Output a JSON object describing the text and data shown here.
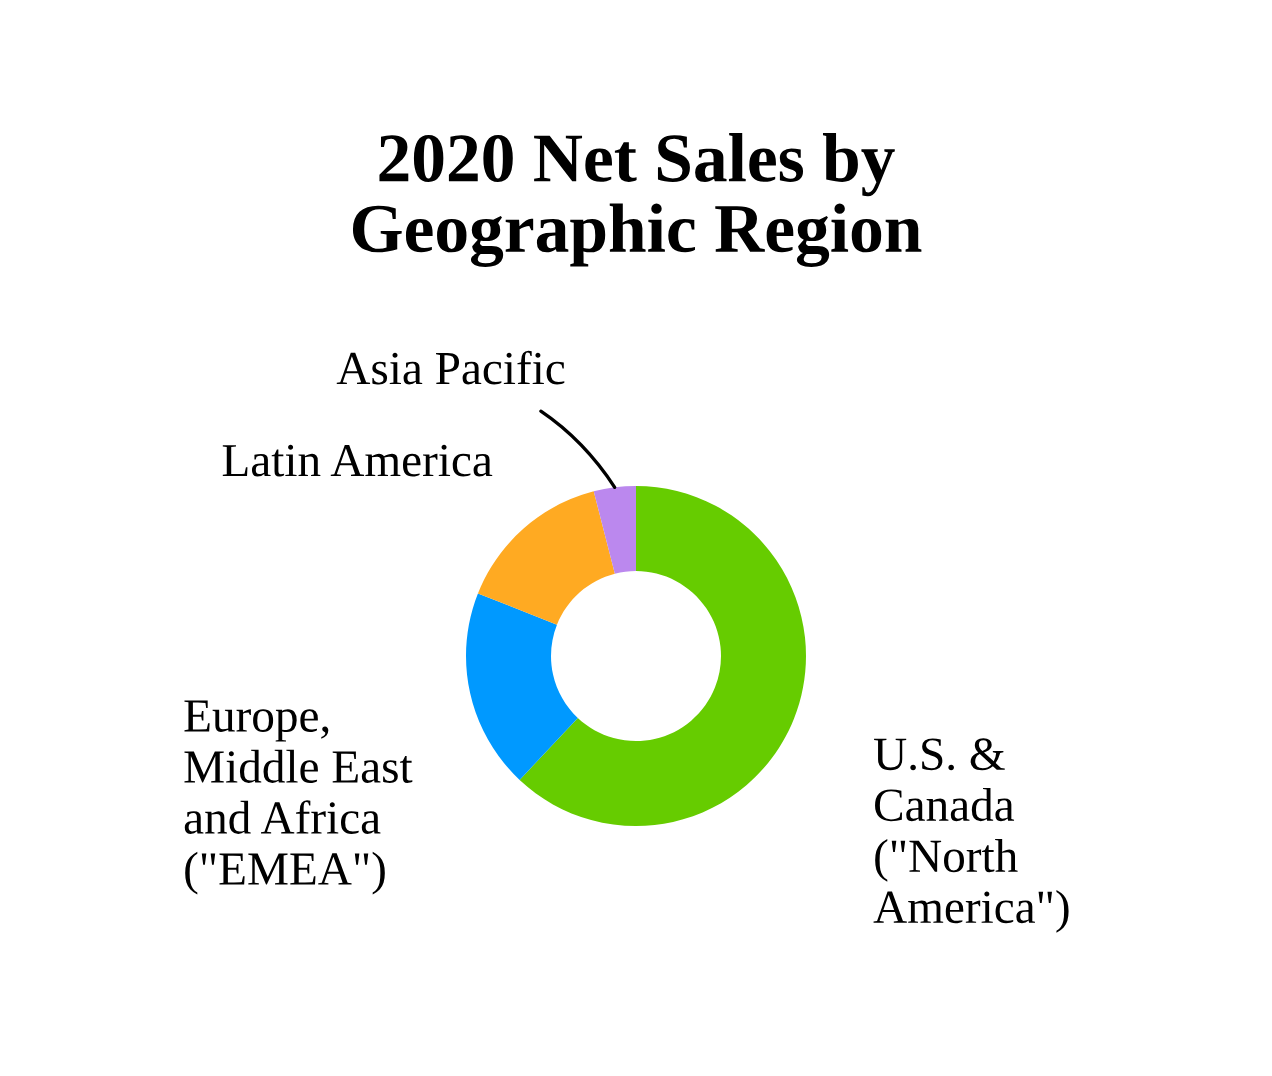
{
  "chart_data": {
    "type": "donut",
    "title": "2020 Net Sales by\nGeographic Region",
    "categories": [
      "U.S. &\nCanada\n(\"North\nAmerica\")",
      "Europe,\nMiddle East\nand Africa\n(\"EMEA\")",
      "Latin America",
      "Asia Pacific"
    ],
    "values": [
      62,
      19,
      15,
      4
    ],
    "colors": [
      "#66cc00",
      "#0099ff",
      "#ffaa22",
      "#bb88ee"
    ]
  }
}
